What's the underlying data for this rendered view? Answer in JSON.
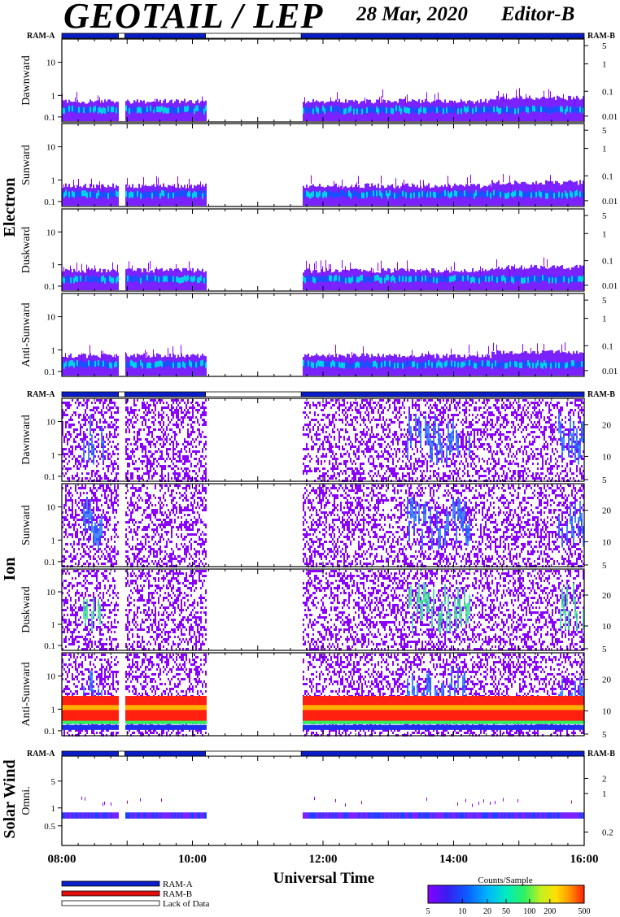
{
  "header": {
    "title": "GEOTAIL / LEP",
    "date": "28 Mar, 2020",
    "editor": "Editor-B"
  },
  "ram": {
    "a": "RAM-A",
    "b": "RAM-B"
  },
  "groups": {
    "electron": "Electron",
    "ion": "Ion",
    "solar": "Solar Wind"
  },
  "panels": [
    {
      "id": "electron-dawnward",
      "label": "Dawnward",
      "group": "electron",
      "left_ticks": [
        "10",
        "1",
        "0.1"
      ],
      "right_ticks": [
        "5",
        "1",
        "0.1",
        "0.01"
      ],
      "style": "electron"
    },
    {
      "id": "electron-sunward",
      "label": "Sunward",
      "group": "electron",
      "left_ticks": [
        "10",
        "1",
        "0.1"
      ],
      "right_ticks": [
        "5",
        "1",
        "0.1",
        "0.01"
      ],
      "style": "electron"
    },
    {
      "id": "electron-duskward",
      "label": "Duskward",
      "group": "electron",
      "left_ticks": [
        "10",
        "1",
        "0.1"
      ],
      "right_ticks": [
        "5",
        "1",
        "0.1",
        "0.01"
      ],
      "style": "electron"
    },
    {
      "id": "electron-anti-sunward",
      "label": "Anti-Sunward",
      "group": "electron",
      "left_ticks": [
        "10",
        "1",
        "0.1"
      ],
      "right_ticks": [
        "5",
        "1",
        "0.1",
        "0.01"
      ],
      "style": "electron"
    },
    {
      "id": "ion-dawnward",
      "label": "Dawnward",
      "group": "ion",
      "left_ticks": [
        "10",
        "1",
        "0.1"
      ],
      "right_ticks": [
        "20",
        "10",
        "5"
      ],
      "style": "ion"
    },
    {
      "id": "ion-sunward",
      "label": "Sunward",
      "group": "ion",
      "left_ticks": [
        "10",
        "1",
        "0.1"
      ],
      "right_ticks": [
        "20",
        "10",
        "5"
      ],
      "style": "ion"
    },
    {
      "id": "ion-duskward",
      "label": "Duskward",
      "group": "ion",
      "left_ticks": [
        "10",
        "1",
        "0.1"
      ],
      "right_ticks": [
        "20",
        "10",
        "5"
      ],
      "style": "ion"
    },
    {
      "id": "ion-anti-sunward",
      "label": "Anti-Sunward",
      "group": "ion",
      "left_ticks": [
        "10",
        "1",
        "0.1"
      ],
      "right_ticks": [
        "20",
        "10",
        "5"
      ],
      "style": "ion-anti"
    },
    {
      "id": "solar-omni",
      "label": "Omni.",
      "group": "solar",
      "left_ticks": [
        "5",
        "1",
        "0.5"
      ],
      "right_ticks": [
        "2",
        "1",
        "0.2"
      ],
      "style": "solar"
    }
  ],
  "chart_data": {
    "type": "heatmap",
    "xlabel": "Universal Time",
    "x_ticks": [
      "08:00",
      "10:00",
      "12:00",
      "14:00",
      "16:00"
    ],
    "xlim": [
      "08:00",
      "16:00"
    ],
    "ylabel_left_scale": "log",
    "data_gaps_ut": [
      [
        "08:52",
        "08:58"
      ],
      [
        "10:12",
        "11:40"
      ]
    ],
    "ram_bar_segments": [
      {
        "from": "08:00",
        "to": "08:52",
        "state": "RAM-A"
      },
      {
        "from": "08:52",
        "to": "08:58",
        "state": "Lack of Data"
      },
      {
        "from": "08:58",
        "to": "10:12",
        "state": "RAM-A"
      },
      {
        "from": "10:12",
        "to": "11:40",
        "state": "Lack of Data"
      },
      {
        "from": "11:40",
        "to": "16:00",
        "state": "RAM-A"
      }
    ]
  },
  "legend": {
    "items": [
      {
        "label": "RAM-A",
        "color": "#0a1ec8"
      },
      {
        "label": "RAM-B",
        "color": "#e01010"
      },
      {
        "label": "Lack of Data",
        "color": "#ffffff"
      }
    ]
  },
  "colorbar": {
    "title": "Counts/Sample",
    "ticks": [
      "5",
      "10",
      "20",
      "50",
      "100",
      "200",
      "500"
    ],
    "colors": [
      "#8a00ff",
      "#3a1cf0",
      "#0a5cff",
      "#00b4ff",
      "#00ecc0",
      "#30f060",
      "#c0f020",
      "#ffe000",
      "#ff9000",
      "#ff2000"
    ]
  }
}
